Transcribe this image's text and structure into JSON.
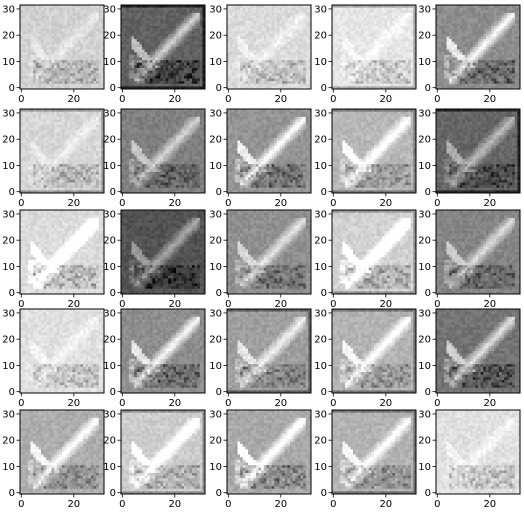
{
  "chart_data": {
    "type": "heatmap",
    "colormap": "gray",
    "layout": {
      "rows": 5,
      "cols": 5
    },
    "subject": "airplane",
    "image_size": [
      32,
      32
    ],
    "xlim": [
      -0.5,
      31.5
    ],
    "ylim": [
      31.5,
      -0.5
    ],
    "x_ticks": [
      0,
      20
    ],
    "y_ticks": [
      0,
      10,
      20,
      30
    ],
    "panel_tones": [
      [
        0.82,
        0.38,
        0.86,
        0.9,
        0.55
      ],
      [
        0.84,
        0.5,
        0.58,
        0.72,
        0.4
      ],
      [
        0.86,
        0.32,
        0.56,
        0.82,
        0.52
      ],
      [
        0.88,
        0.55,
        0.62,
        0.7,
        0.45
      ],
      [
        0.68,
        0.8,
        0.66,
        0.7,
        0.88
      ]
    ]
  }
}
